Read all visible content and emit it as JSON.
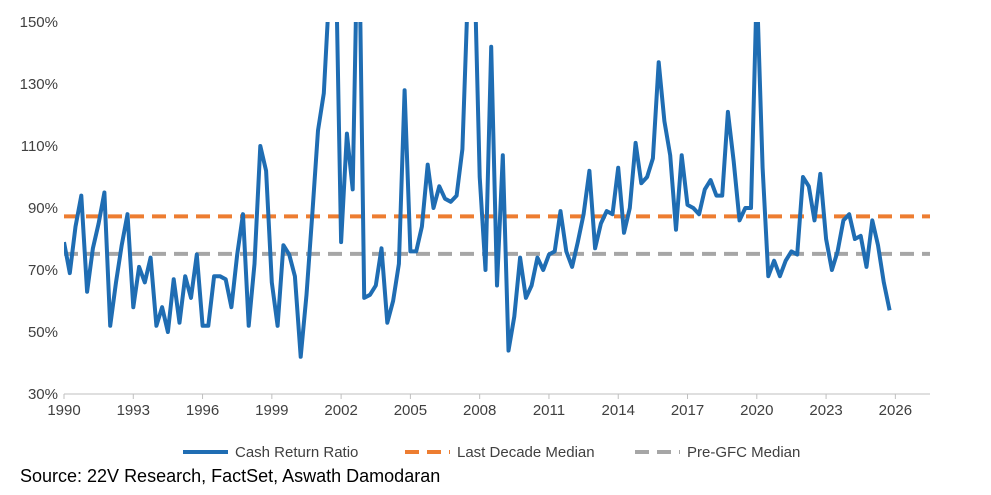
{
  "chart_data": {
    "type": "line",
    "title": "",
    "xlabel": "",
    "ylabel": "",
    "xlim": [
      1990,
      2027.5
    ],
    "ylim": [
      0.3,
      1.5
    ],
    "grid": false,
    "legend_position": "bottom",
    "x_ticks": [
      1990,
      1993,
      1996,
      1999,
      2002,
      2005,
      2008,
      2011,
      2014,
      2017,
      2020,
      2023,
      2026
    ],
    "x_tick_labels": [
      "1990",
      "1993",
      "1996",
      "1999",
      "2002",
      "2005",
      "2008",
      "2011",
      "2014",
      "2017",
      "2020",
      "2023",
      "2026"
    ],
    "y_ticks": [
      0.3,
      0.5,
      0.7,
      0.9,
      1.1,
      1.3,
      1.5
    ],
    "y_tick_labels": [
      "30%",
      "50%",
      "70%",
      "90%",
      "110%",
      "130%",
      "150%"
    ],
    "series": [
      {
        "name": "Cash Return Ratio",
        "color": "#1f6db3",
        "style": "solid",
        "x": [
          1990.0,
          1990.25,
          1990.5,
          1990.75,
          1991.0,
          1991.25,
          1991.5,
          1991.75,
          1992.0,
          1992.25,
          1992.5,
          1992.75,
          1993.0,
          1993.25,
          1993.5,
          1993.75,
          1994.0,
          1994.25,
          1994.5,
          1994.75,
          1995.0,
          1995.25,
          1995.5,
          1995.75,
          1996.0,
          1996.25,
          1996.5,
          1996.75,
          1997.0,
          1997.25,
          1997.5,
          1997.75,
          1998.0,
          1998.25,
          1998.5,
          1998.75,
          1999.0,
          1999.25,
          1999.5,
          1999.75,
          2000.0,
          2000.25,
          2000.5,
          2000.75,
          2001.0,
          2001.25,
          2001.5,
          2001.75,
          2002.0,
          2002.25,
          2002.5,
          2002.75,
          2003.0,
          2003.25,
          2003.5,
          2003.75,
          2004.0,
          2004.25,
          2004.5,
          2004.75,
          2005.0,
          2005.25,
          2005.5,
          2005.75,
          2006.0,
          2006.25,
          2006.5,
          2006.75,
          2007.0,
          2007.25,
          2007.5,
          2007.75,
          2008.0,
          2008.25,
          2008.5,
          2008.75,
          2009.0,
          2009.25,
          2009.5,
          2009.75,
          2010.0,
          2010.25,
          2010.5,
          2010.75,
          2011.0,
          2011.25,
          2011.5,
          2011.75,
          2012.0,
          2012.25,
          2012.5,
          2012.75,
          2013.0,
          2013.25,
          2013.5,
          2013.75,
          2014.0,
          2014.25,
          2014.5,
          2014.75,
          2015.0,
          2015.25,
          2015.5,
          2015.75,
          2016.0,
          2016.25,
          2016.5,
          2016.75,
          2017.0,
          2017.25,
          2017.5,
          2017.75,
          2018.0,
          2018.25,
          2018.5,
          2018.75,
          2019.0,
          2019.25,
          2019.5,
          2019.75,
          2020.0,
          2020.25,
          2020.5,
          2020.75,
          2021.0,
          2021.25,
          2021.5,
          2021.75,
          2022.0,
          2022.25,
          2022.5,
          2022.75,
          2023.0,
          2023.25,
          2023.5,
          2023.75,
          2024.0,
          2024.25,
          2024.5,
          2024.75,
          2025.0,
          2025.25,
          2025.5,
          2025.75
        ],
        "y": [
          0.79,
          0.69,
          0.84,
          0.94,
          0.63,
          0.77,
          0.85,
          0.95,
          0.52,
          0.66,
          0.78,
          0.88,
          0.58,
          0.71,
          0.66,
          0.74,
          0.52,
          0.58,
          0.5,
          0.67,
          0.53,
          0.68,
          0.61,
          0.75,
          0.52,
          0.52,
          0.68,
          0.68,
          0.67,
          0.58,
          0.75,
          0.88,
          0.52,
          0.72,
          1.1,
          1.02,
          0.66,
          0.52,
          0.78,
          0.75,
          0.68,
          0.42,
          0.62,
          0.88,
          1.15,
          1.27,
          1.62,
          1.8,
          0.79,
          1.14,
          0.96,
          1.95,
          0.61,
          0.62,
          0.65,
          0.77,
          0.53,
          0.6,
          0.72,
          1.28,
          0.76,
          0.76,
          0.84,
          1.04,
          0.9,
          0.97,
          0.93,
          0.92,
          0.94,
          1.09,
          1.62,
          1.75,
          1.0,
          0.7,
          1.42,
          0.65,
          1.07,
          0.44,
          0.55,
          0.74,
          0.61,
          0.65,
          0.74,
          0.7,
          0.75,
          0.76,
          0.89,
          0.76,
          0.71,
          0.79,
          0.88,
          1.02,
          0.77,
          0.85,
          0.89,
          0.88,
          1.03,
          0.82,
          0.9,
          1.11,
          0.98,
          1.0,
          1.06,
          1.37,
          1.18,
          1.07,
          0.83,
          1.07,
          0.91,
          0.9,
          0.88,
          0.96,
          0.99,
          0.94,
          0.94,
          1.21,
          1.05,
          0.86,
          0.9,
          0.9,
          1.62,
          1.03,
          0.68,
          0.73,
          0.68,
          0.73,
          0.76,
          0.75,
          1.0,
          0.97,
          0.86,
          1.01,
          0.8,
          0.7,
          0.76,
          0.86,
          0.88,
          0.8,
          0.81,
          0.71,
          0.86,
          0.78,
          0.66,
          0.57
        ]
      },
      {
        "name": "Last Decade Median",
        "color": "#ed7d31",
        "style": "dashed",
        "x": [
          1990,
          2027.5
        ],
        "y": [
          0.873,
          0.873
        ]
      },
      {
        "name": "Pre-GFC Median",
        "color": "#a6a6a6",
        "style": "dashed",
        "x": [
          1990,
          2027.5
        ],
        "y": [
          0.752,
          0.752
        ]
      }
    ]
  },
  "footer": {
    "source": "Source: 22V Research, FactSet, Aswath Damodaran"
  }
}
